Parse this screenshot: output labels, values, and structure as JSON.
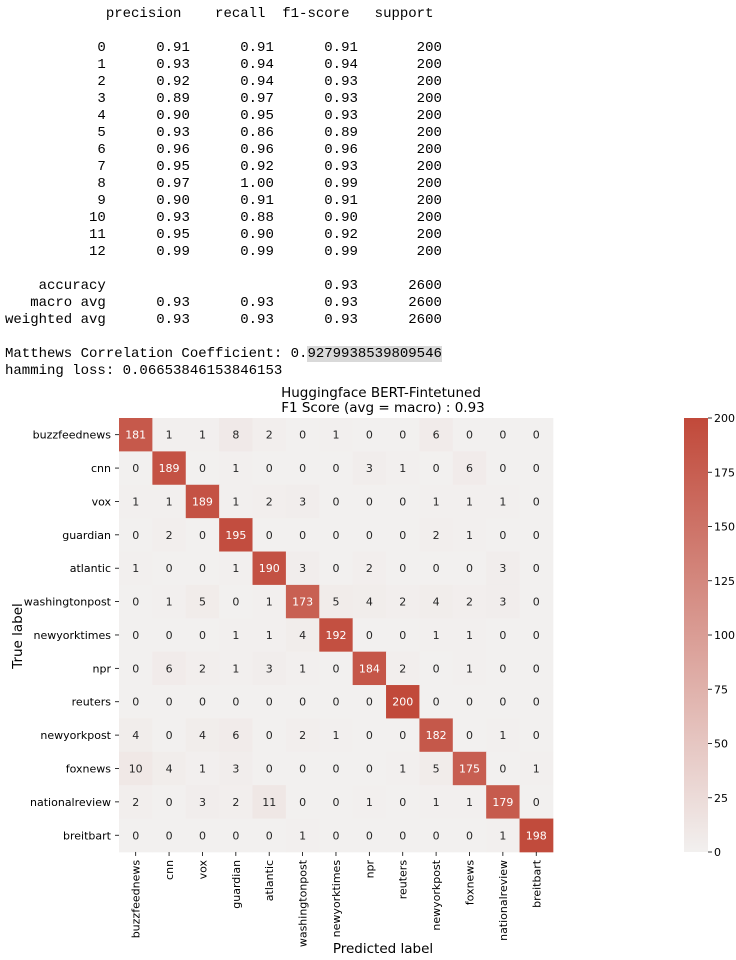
{
  "report": {
    "headers": [
      "precision",
      "recall",
      "f1-score",
      "support"
    ],
    "rows": [
      {
        "label": "0",
        "precision": "0.91",
        "recall": "0.91",
        "f1": "0.91",
        "support": "200"
      },
      {
        "label": "1",
        "precision": "0.93",
        "recall": "0.94",
        "f1": "0.94",
        "support": "200"
      },
      {
        "label": "2",
        "precision": "0.92",
        "recall": "0.94",
        "f1": "0.93",
        "support": "200"
      },
      {
        "label": "3",
        "precision": "0.89",
        "recall": "0.97",
        "f1": "0.93",
        "support": "200"
      },
      {
        "label": "4",
        "precision": "0.90",
        "recall": "0.95",
        "f1": "0.93",
        "support": "200"
      },
      {
        "label": "5",
        "precision": "0.93",
        "recall": "0.86",
        "f1": "0.89",
        "support": "200"
      },
      {
        "label": "6",
        "precision": "0.96",
        "recall": "0.96",
        "f1": "0.96",
        "support": "200"
      },
      {
        "label": "7",
        "precision": "0.95",
        "recall": "0.92",
        "f1": "0.93",
        "support": "200"
      },
      {
        "label": "8",
        "precision": "0.97",
        "recall": "1.00",
        "f1": "0.99",
        "support": "200"
      },
      {
        "label": "9",
        "precision": "0.90",
        "recall": "0.91",
        "f1": "0.91",
        "support": "200"
      },
      {
        "label": "10",
        "precision": "0.93",
        "recall": "0.88",
        "f1": "0.90",
        "support": "200"
      },
      {
        "label": "11",
        "precision": "0.95",
        "recall": "0.90",
        "f1": "0.92",
        "support": "200"
      },
      {
        "label": "12",
        "precision": "0.99",
        "recall": "0.99",
        "f1": "0.99",
        "support": "200"
      }
    ],
    "summary": [
      {
        "label": "accuracy",
        "precision": "",
        "recall": "",
        "f1": "0.93",
        "support": "2600"
      },
      {
        "label": "macro avg",
        "precision": "0.93",
        "recall": "0.93",
        "f1": "0.93",
        "support": "2600"
      },
      {
        "label": "weighted avg",
        "precision": "0.93",
        "recall": "0.93",
        "f1": "0.93",
        "support": "2600"
      }
    ]
  },
  "stats": {
    "mcc_label": "Matthews Correlation Coefficient: 0.",
    "mcc_value": "9279938539809546",
    "hamming_line": "hamming loss: 0.06653846153846153"
  },
  "chart_data": {
    "type": "heatmap",
    "title": "Huggingface BERT-Fintetuned",
    "subtitle": "F1 Score (avg = macro) : 0.93",
    "xlabel": "Predicted label",
    "ylabel": "True label",
    "labels": [
      "buzzfeednews",
      "cnn",
      "vox",
      "guardian",
      "atlantic",
      "washingtonpost",
      "newyorktimes",
      "npr",
      "reuters",
      "newyorkpost",
      "foxnews",
      "nationalreview",
      "breitbart"
    ],
    "matrix": [
      [
        181,
        1,
        1,
        8,
        2,
        0,
        1,
        0,
        0,
        6,
        0,
        0,
        0
      ],
      [
        0,
        189,
        0,
        1,
        0,
        0,
        0,
        3,
        1,
        0,
        6,
        0,
        0
      ],
      [
        1,
        1,
        189,
        1,
        2,
        3,
        0,
        0,
        0,
        1,
        1,
        1,
        0
      ],
      [
        0,
        2,
        0,
        195,
        0,
        0,
        0,
        0,
        0,
        2,
        1,
        0,
        0
      ],
      [
        1,
        0,
        0,
        1,
        190,
        3,
        0,
        2,
        0,
        0,
        0,
        3,
        0
      ],
      [
        0,
        1,
        5,
        0,
        1,
        173,
        5,
        4,
        2,
        4,
        2,
        3,
        0
      ],
      [
        0,
        0,
        0,
        1,
        1,
        4,
        192,
        0,
        0,
        1,
        1,
        0,
        0
      ],
      [
        0,
        6,
        2,
        1,
        3,
        1,
        0,
        184,
        2,
        0,
        1,
        0,
        0
      ],
      [
        0,
        0,
        0,
        0,
        0,
        0,
        0,
        0,
        200,
        0,
        0,
        0,
        0
      ],
      [
        4,
        0,
        4,
        6,
        0,
        2,
        1,
        0,
        0,
        182,
        0,
        1,
        0
      ],
      [
        10,
        4,
        1,
        3,
        0,
        0,
        0,
        0,
        1,
        5,
        175,
        0,
        1
      ],
      [
        2,
        0,
        3,
        2,
        11,
        0,
        0,
        1,
        0,
        1,
        1,
        179,
        0
      ],
      [
        0,
        0,
        0,
        0,
        0,
        1,
        0,
        0,
        0,
        0,
        0,
        1,
        198
      ]
    ],
    "vmin": 0,
    "vmax": 200,
    "colorbar_ticks": [
      "0",
      "25",
      "50",
      "75",
      "100",
      "125",
      "150",
      "175",
      "200"
    ],
    "colors": {
      "low": "#f2f0ef",
      "high": "#c1493a"
    }
  }
}
